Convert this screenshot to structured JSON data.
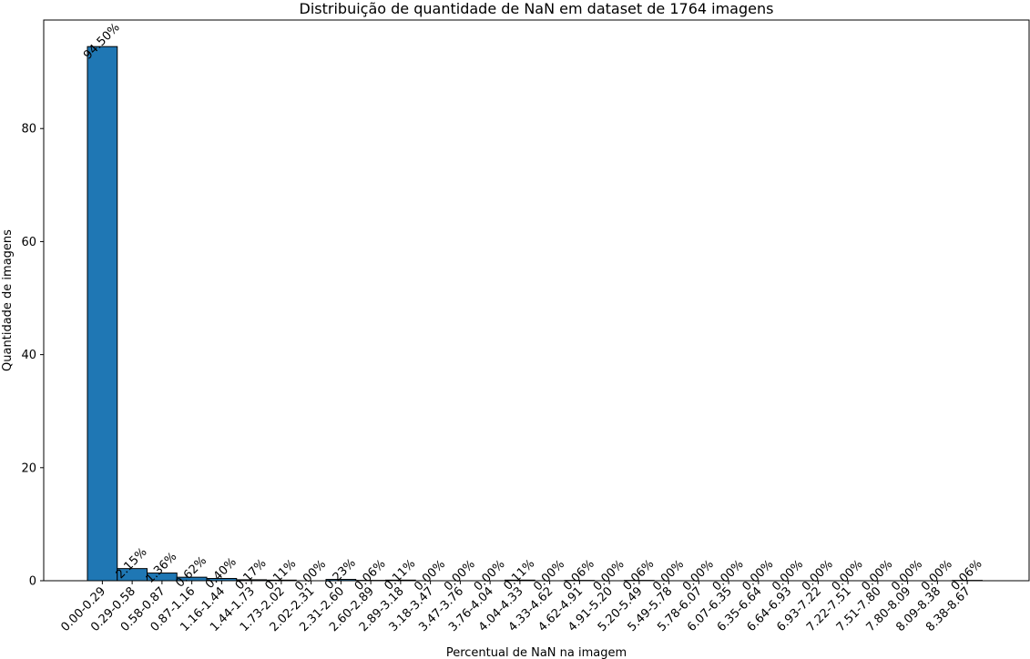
{
  "chart_data": {
    "type": "bar",
    "title": "Distribuição de quantidade de NaN em dataset de 1764 imagens",
    "xlabel": "Percentual de NaN na imagem",
    "ylabel": "Quantidade de imagens",
    "ylim": [
      0,
      99.2
    ],
    "yticks": [
      0,
      20,
      40,
      60,
      80
    ],
    "grid": false,
    "bar_color": "#1f77b4",
    "edge_color": "#000000",
    "categories": [
      "0.00-0.29",
      "0.29-0.58",
      "0.58-0.87",
      "0.87-1.16",
      "1.16-1.44",
      "1.44-1.73",
      "1.73-2.02",
      "2.02-2.31",
      "2.31-2.60",
      "2.60-2.89",
      "2.89-3.18",
      "3.18-3.47",
      "3.47-3.76",
      "3.76-4.04",
      "4.04-4.33",
      "4.33-4.62",
      "4.62-4.91",
      "4.91-5.20",
      "5.20-5.49",
      "5.49-5.78",
      "5.78-6.07",
      "6.07-6.35",
      "6.35-6.64",
      "6.64-6.93",
      "6.93-7.22",
      "7.22-7.51",
      "7.51-7.80",
      "7.80-8.09",
      "8.09-8.38",
      "8.38-8.67"
    ],
    "values": [
      94.5,
      2.15,
      1.36,
      0.62,
      0.4,
      0.17,
      0.11,
      0.0,
      0.23,
      0.06,
      0.11,
      0.0,
      0.0,
      0.0,
      0.11,
      0.0,
      0.06,
      0.0,
      0.06,
      0.0,
      0.0,
      0.0,
      0.0,
      0.0,
      0.0,
      0.0,
      0.0,
      0.0,
      0.0,
      0.06
    ],
    "data_labels": [
      "94.50%",
      "2.15%",
      "1.36%",
      "0.62%",
      "0.40%",
      "0.17%",
      "0.11%",
      "0.00%",
      "0.23%",
      "0.06%",
      "0.11%",
      "0.00%",
      "0.00%",
      "0.00%",
      "0.11%",
      "0.00%",
      "0.06%",
      "0.00%",
      "0.06%",
      "0.00%",
      "0.00%",
      "0.00%",
      "0.00%",
      "0.00%",
      "0.00%",
      "0.00%",
      "0.00%",
      "0.00%",
      "0.00%",
      "0.06%"
    ]
  }
}
